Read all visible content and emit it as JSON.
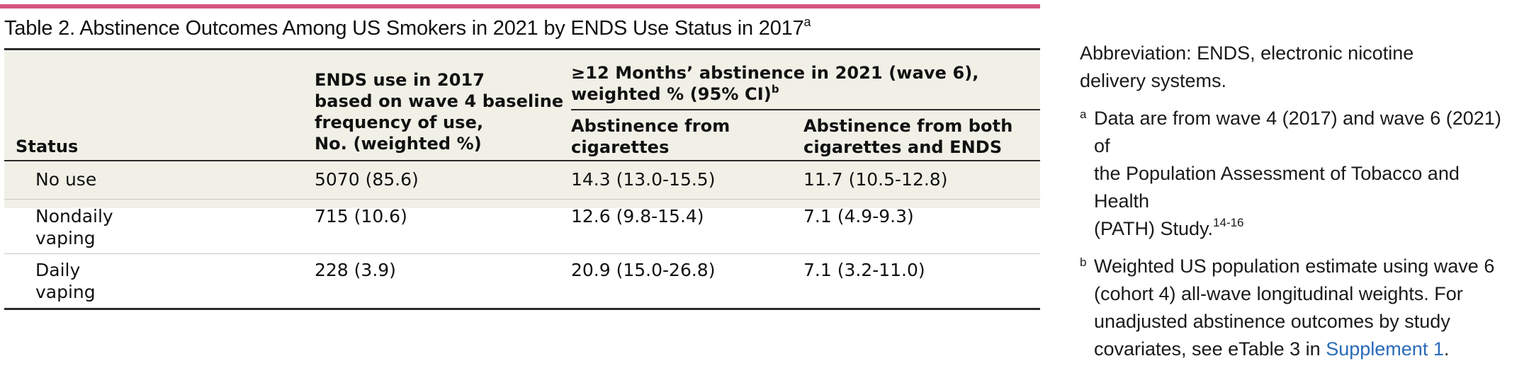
{
  "colors": {
    "accent_rule": "#d4537e",
    "header_background": "#f1f0e7",
    "link": "#2a6ab8"
  },
  "title": {
    "text": "Table 2. Abstinence Outcomes Among US Smokers in 2021 by ENDS Use Status in 2017",
    "sup": "a"
  },
  "table": {
    "headers": {
      "status": "Status",
      "ends_use": [
        "ENDS use in 2017",
        "based on wave 4 baseline",
        "frequency of use,",
        "No. (weighted %)"
      ],
      "group": [
        "≥12 Months’ abstinence in 2021 (wave 6),",
        "weighted % (95% CI)"
      ],
      "group_sup": "b",
      "cigs": [
        "Abstinence from",
        "cigarettes"
      ],
      "both": [
        "Abstinence from both",
        "cigarettes and ENDS"
      ]
    },
    "rows": [
      {
        "status": [
          "No use"
        ],
        "ends": "5070 (85.6)",
        "cigs": "14.3 (13.0-15.5)",
        "both": "11.7 (10.5-12.8)"
      },
      {
        "status": [
          "Nondaily",
          "vaping"
        ],
        "ends": "715 (10.6)",
        "cigs": "12.6 (9.8-15.4)",
        "both": "7.1 (4.9-9.3)"
      },
      {
        "status": [
          "Daily",
          "vaping"
        ],
        "ends": "228 (3.9)",
        "cigs": "20.9 (15.0-26.8)",
        "both": "7.1 (3.2-11.0)"
      }
    ]
  },
  "notes": {
    "abbreviation": [
      "Abbreviation: ENDS, electronic nicotine",
      "delivery systems."
    ],
    "footnote_a": {
      "marker": "a",
      "lines": [
        "Data are from wave 4 (2017) and wave 6 (2021) of",
        "the Population Assessment of Tobacco and Health",
        "(PATH) Study."
      ],
      "ref": "14-16"
    },
    "footnote_b": {
      "marker": "b",
      "lines": [
        "Weighted US population estimate using wave 6",
        "(cohort 4) all-wave longitudinal weights. For",
        "unadjusted abstinence outcomes by study",
        "covariates, see eTable 3 in"
      ],
      "link": "Supplement 1",
      "end": "."
    }
  }
}
